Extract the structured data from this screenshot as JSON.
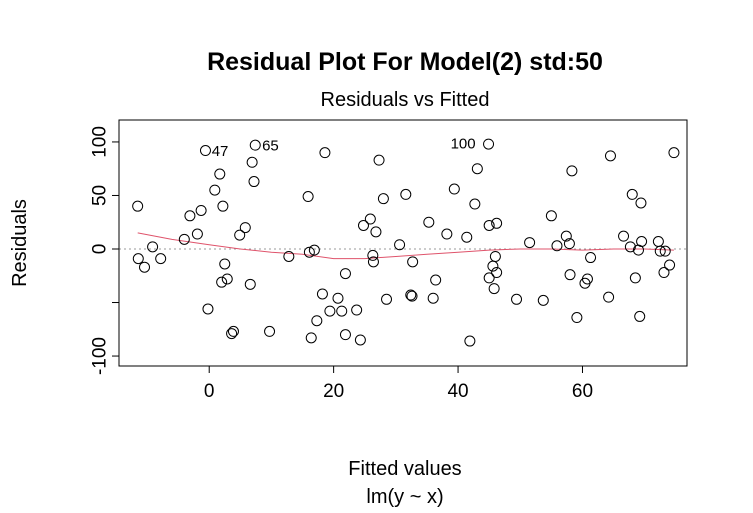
{
  "chart_data": {
    "type": "scatter",
    "title": "Residual Plot For Model(2) std:50",
    "subtitle": "Residuals vs Fitted",
    "xlabel": "Fitted values",
    "xlabel2": "lm(y ~ x)",
    "ylabel": "Residuals",
    "xlim": [
      -14.5,
      76.8
    ],
    "ylim": [
      -109.3,
      120.5
    ],
    "xticks": [
      0,
      20,
      40,
      60
    ],
    "yticks": [
      -100,
      -50,
      0,
      50,
      100
    ],
    "ytick_labels": [
      "-100",
      "",
      "0",
      "50",
      "100"
    ],
    "grid": false,
    "zero_line": true,
    "colors": {
      "points": "#000000",
      "smooth": "#DF536B",
      "zero_line": "#999999"
    },
    "annotations": [
      {
        "label": "47",
        "x": 0.4,
        "y": 91
      },
      {
        "label": "65",
        "x": 8.5,
        "y": 96
      },
      {
        "label": "100",
        "x": 38.8,
        "y": 98
      }
    ],
    "points": [
      [
        -11.5,
        40
      ],
      [
        -11.4,
        -9
      ],
      [
        -10.4,
        -17
      ],
      [
        -9.1,
        2
      ],
      [
        -7.8,
        -9
      ],
      [
        -4,
        9
      ],
      [
        -3.1,
        31
      ],
      [
        -1.9,
        14
      ],
      [
        -1.3,
        36
      ],
      [
        -0.6,
        92
      ],
      [
        -0.2,
        -56
      ],
      [
        0.9,
        55
      ],
      [
        1.7,
        70
      ],
      [
        2.2,
        40
      ],
      [
        2.5,
        -14
      ],
      [
        2,
        -31
      ],
      [
        2.9,
        -28
      ],
      [
        3.6,
        -79
      ],
      [
        3.9,
        -77
      ],
      [
        4.9,
        13
      ],
      [
        5.8,
        20
      ],
      [
        6.6,
        -33
      ],
      [
        6.9,
        81
      ],
      [
        7.2,
        63
      ],
      [
        7.4,
        97
      ],
      [
        9.7,
        -77
      ],
      [
        12.8,
        -7
      ],
      [
        15.9,
        49
      ],
      [
        16.4,
        -83
      ],
      [
        16.1,
        -3
      ],
      [
        16.9,
        -1
      ],
      [
        17.3,
        -67
      ],
      [
        18.2,
        -42
      ],
      [
        18.6,
        90
      ],
      [
        19.4,
        -58
      ],
      [
        20.7,
        -46
      ],
      [
        21.3,
        -58
      ],
      [
        21.9,
        -23
      ],
      [
        21.9,
        -80
      ],
      [
        23.7,
        -57
      ],
      [
        24.3,
        -85
      ],
      [
        24.8,
        22
      ],
      [
        25.9,
        28
      ],
      [
        26.3,
        -6
      ],
      [
        26.4,
        -12
      ],
      [
        26.8,
        16
      ],
      [
        27.3,
        83
      ],
      [
        28,
        47
      ],
      [
        28.5,
        -47
      ],
      [
        30.6,
        4
      ],
      [
        31.6,
        51
      ],
      [
        32.4,
        -43
      ],
      [
        32.6,
        -44
      ],
      [
        32.7,
        -12
      ],
      [
        35.3,
        25
      ],
      [
        36,
        -46
      ],
      [
        36.4,
        -29
      ],
      [
        38.2,
        14
      ],
      [
        39.4,
        56
      ],
      [
        41.4,
        11
      ],
      [
        41.9,
        -86
      ],
      [
        42.7,
        42
      ],
      [
        43.1,
        75
      ],
      [
        44.9,
        98
      ],
      [
        45,
        22
      ],
      [
        45,
        -27
      ],
      [
        45.6,
        -16
      ],
      [
        45.8,
        -37
      ],
      [
        46,
        -7
      ],
      [
        46.2,
        24
      ],
      [
        46.2,
        -22
      ],
      [
        49.4,
        -47
      ],
      [
        51.5,
        6
      ],
      [
        53.7,
        -48
      ],
      [
        55,
        31
      ],
      [
        55.9,
        3
      ],
      [
        57.4,
        12
      ],
      [
        57.9,
        5
      ],
      [
        58,
        -24
      ],
      [
        58.3,
        73
      ],
      [
        59.1,
        -64
      ],
      [
        60.4,
        -32
      ],
      [
        60.8,
        -28
      ],
      [
        61.3,
        -8
      ],
      [
        64.2,
        -45
      ],
      [
        64.5,
        87
      ],
      [
        66.6,
        12
      ],
      [
        67.7,
        2
      ],
      [
        68,
        51
      ],
      [
        68.5,
        -27
      ],
      [
        69,
        -1
      ],
      [
        69.2,
        -63
      ],
      [
        69.4,
        43
      ],
      [
        69.5,
        7
      ],
      [
        72.2,
        7
      ],
      [
        72.5,
        -2
      ],
      [
        73.1,
        -22
      ],
      [
        73.3,
        -2
      ],
      [
        74,
        -15
      ],
      [
        74.7,
        90
      ]
    ],
    "smooth": [
      [
        -11.5,
        15
      ],
      [
        -6,
        9
      ],
      [
        0,
        4
      ],
      [
        5,
        0
      ],
      [
        10,
        -3
      ],
      [
        15,
        -5
      ],
      [
        20,
        -9
      ],
      [
        25,
        -9
      ],
      [
        30,
        -7
      ],
      [
        35,
        -5
      ],
      [
        40,
        -3
      ],
      [
        45,
        -1
      ],
      [
        50,
        0
      ],
      [
        55,
        0
      ],
      [
        60,
        -1
      ],
      [
        65,
        0
      ],
      [
        70,
        0
      ],
      [
        74.7,
        -1
      ]
    ]
  }
}
